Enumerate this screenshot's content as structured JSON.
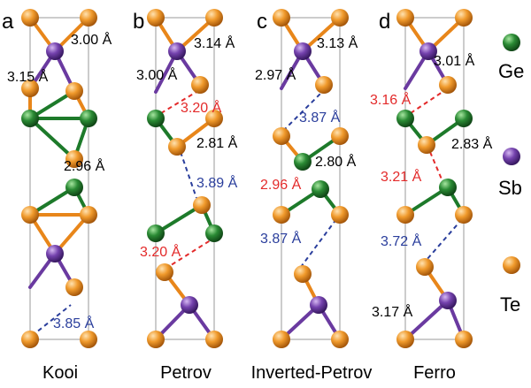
{
  "colors": {
    "ge": "#1d7a2a",
    "sb": "#6a3aa0",
    "te": "#e8861a",
    "bond_black": "#000000",
    "red_label": "#e32a2a",
    "blue_label": "#2a3e9c",
    "cell_line": "#9a9a9a"
  },
  "legend": [
    {
      "element": "ge",
      "label": "Ge"
    },
    {
      "element": "sb",
      "label": "Sb"
    },
    {
      "element": "te",
      "label": "Te"
    }
  ],
  "panels": [
    {
      "letter": "a",
      "name": "Kooi",
      "labels": [
        {
          "text": "3.00 Å",
          "color": "black"
        },
        {
          "text": "3.15 Å",
          "color": "black"
        },
        {
          "text": "2.96 Å",
          "color": "black"
        },
        {
          "text": "3.85 Å",
          "color": "blue"
        }
      ]
    },
    {
      "letter": "b",
      "name": "Petrov",
      "labels": [
        {
          "text": "3.14 Å",
          "color": "black"
        },
        {
          "text": "3.00 Å",
          "color": "black"
        },
        {
          "text": "3.20 Å",
          "color": "red"
        },
        {
          "text": "2.81 Å",
          "color": "black"
        },
        {
          "text": "3.89 Å",
          "color": "blue"
        },
        {
          "text": "3.20 Å",
          "color": "red"
        }
      ]
    },
    {
      "letter": "c",
      "name": "Inverted-Petrov",
      "labels": [
        {
          "text": "3.13 Å",
          "color": "black"
        },
        {
          "text": "2.97 Å",
          "color": "black"
        },
        {
          "text": "3.87 Å",
          "color": "blue"
        },
        {
          "text": "2.80 Å",
          "color": "black"
        },
        {
          "text": "2.96 Å",
          "color": "red"
        },
        {
          "text": "3.87 Å",
          "color": "blue"
        }
      ]
    },
    {
      "letter": "d",
      "name": "Ferro",
      "labels": [
        {
          "text": "3.01 Å",
          "color": "black"
        },
        {
          "text": "3.16 Å",
          "color": "red"
        },
        {
          "text": "2.83 Å",
          "color": "black"
        },
        {
          "text": "3.21 Å",
          "color": "red"
        },
        {
          "text": "3.72 Å",
          "color": "blue"
        },
        {
          "text": "3.17 Å",
          "color": "black"
        }
      ]
    }
  ]
}
